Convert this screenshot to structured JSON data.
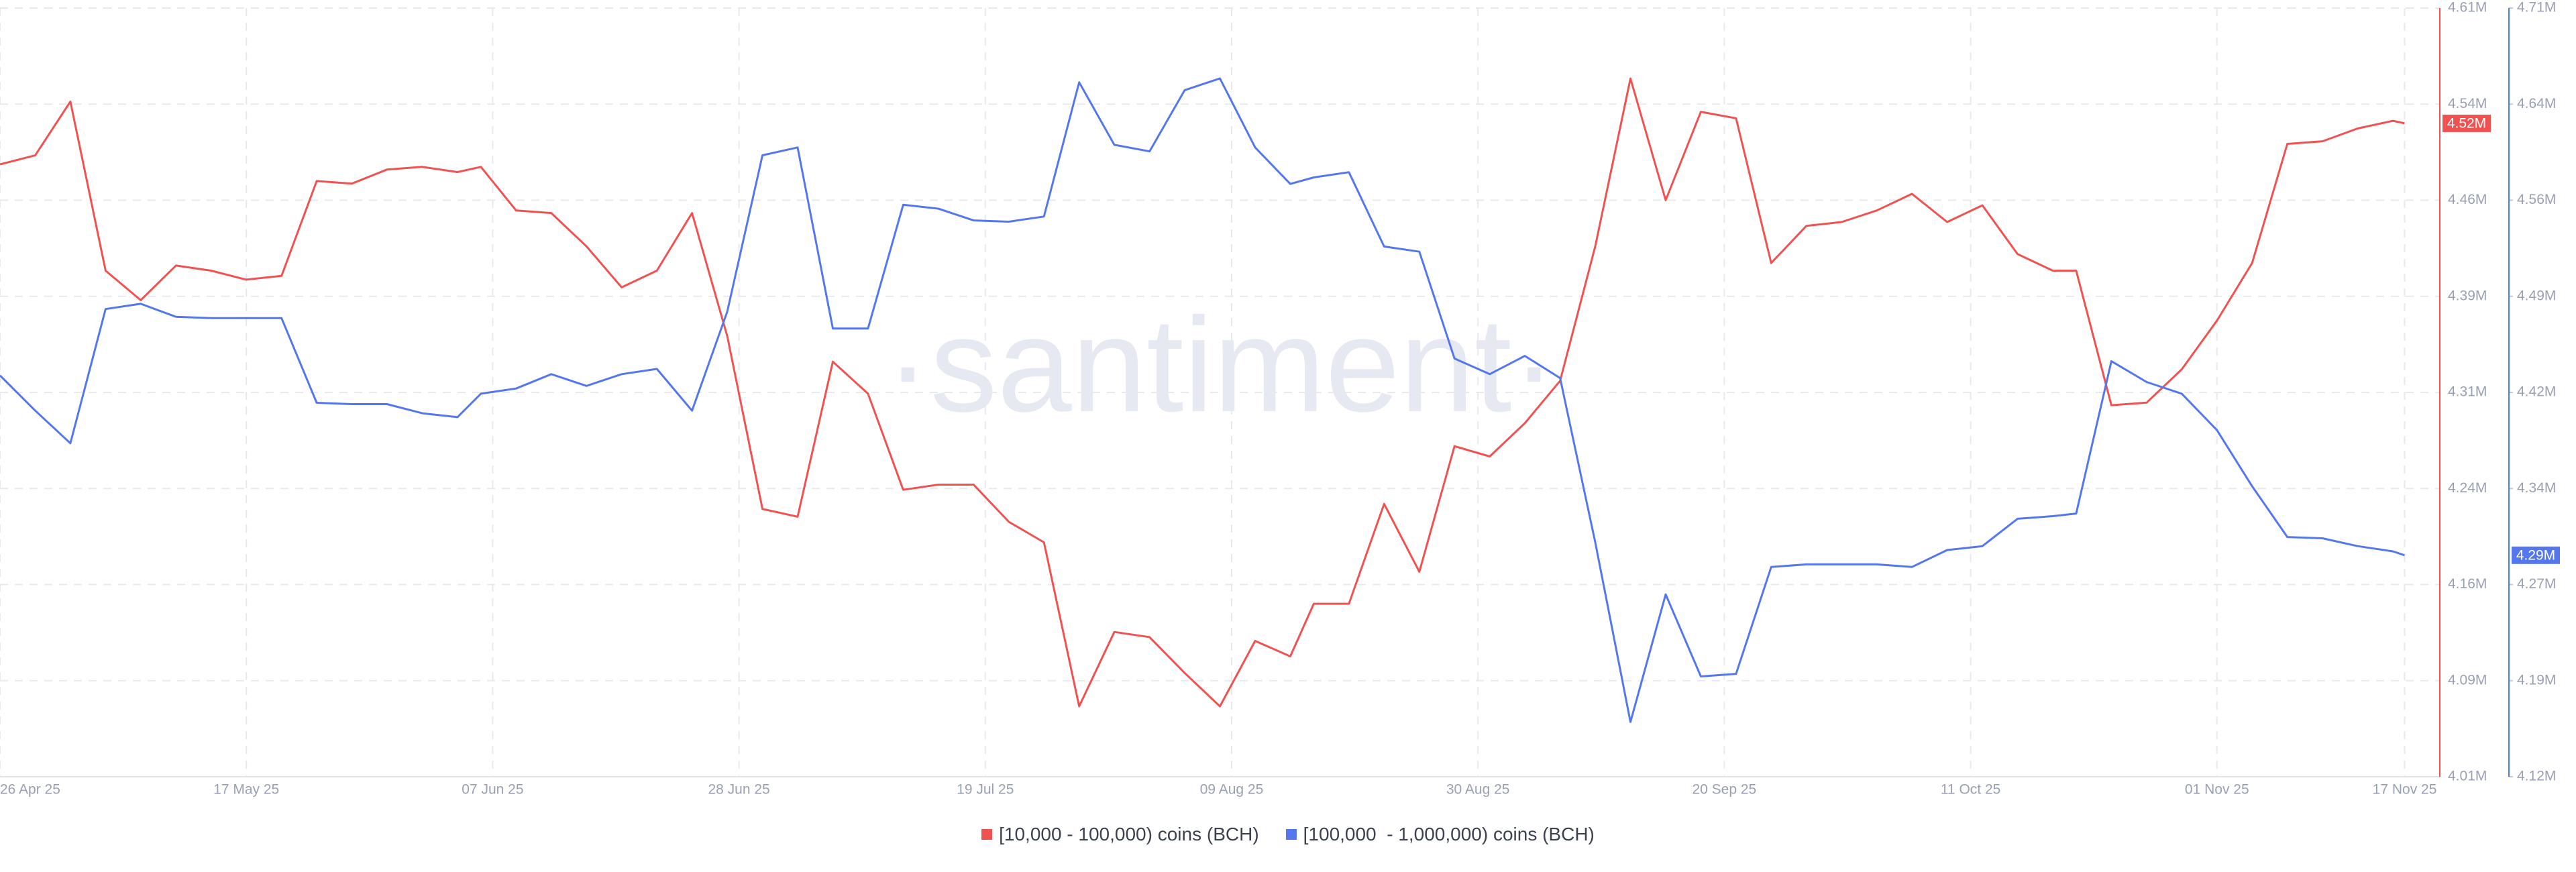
{
  "chart_data": {
    "type": "line",
    "watermark": "·santiment·",
    "x": [
      "2025-04-26",
      "2025-04-29",
      "2025-05-02",
      "2025-05-05",
      "2025-05-08",
      "2025-05-11",
      "2025-05-14",
      "2025-05-17",
      "2025-05-20",
      "2025-05-23",
      "2025-05-26",
      "2025-05-29",
      "2025-06-01",
      "2025-06-04",
      "2025-06-06",
      "2025-06-09",
      "2025-06-12",
      "2025-06-15",
      "2025-06-18",
      "2025-06-21",
      "2025-06-24",
      "2025-06-27",
      "2025-06-30",
      "2025-07-03",
      "2025-07-06",
      "2025-07-09",
      "2025-07-12",
      "2025-07-15",
      "2025-07-18",
      "2025-07-21",
      "2025-07-24",
      "2025-07-27",
      "2025-07-30",
      "2025-08-02",
      "2025-08-05",
      "2025-08-08",
      "2025-08-11",
      "2025-08-14",
      "2025-08-16",
      "2025-08-19",
      "2025-08-22",
      "2025-08-25",
      "2025-08-28",
      "2025-08-31",
      "2025-09-03",
      "2025-09-06",
      "2025-09-09",
      "2025-09-12",
      "2025-09-15",
      "2025-09-18",
      "2025-09-21",
      "2025-09-24",
      "2025-09-27",
      "2025-09-30",
      "2025-10-03",
      "2025-10-06",
      "2025-10-09",
      "2025-10-12",
      "2025-10-15",
      "2025-10-18",
      "2025-10-20",
      "2025-10-23",
      "2025-10-26",
      "2025-10-29",
      "2025-11-01",
      "2025-11-04",
      "2025-11-07",
      "2025-11-10",
      "2025-11-13",
      "2025-11-16",
      "2025-11-17"
    ],
    "xlim": [
      "2025-04-26",
      "2025-11-20"
    ],
    "xticks": [
      {
        "value": "2025-04-26",
        "label": "26 Apr 25"
      },
      {
        "value": "2025-05-17",
        "label": "17 May 25"
      },
      {
        "value": "2025-06-07",
        "label": "07 Jun 25"
      },
      {
        "value": "2025-06-28",
        "label": "28 Jun 25"
      },
      {
        "value": "2025-07-19",
        "label": "19 Jul 25"
      },
      {
        "value": "2025-08-09",
        "label": "09 Aug 25"
      },
      {
        "value": "2025-08-30",
        "label": "30 Aug 25"
      },
      {
        "value": "2025-09-20",
        "label": "20 Sep 25"
      },
      {
        "value": "2025-10-11",
        "label": "11 Oct 25"
      },
      {
        "value": "2025-11-01",
        "label": "01 Nov 25"
      },
      {
        "value": "2025-11-17",
        "label": "17 Nov 25"
      }
    ],
    "ylim": [
      4010000,
      4610000
    ],
    "yticks": [
      {
        "value": 4010000,
        "label": "4.01M"
      },
      {
        "value": 4085000,
        "label": "4.09M"
      },
      {
        "value": 4160000,
        "label": "4.16M"
      },
      {
        "value": 4235000,
        "label": "4.24M"
      },
      {
        "value": 4310000,
        "label": "4.31M"
      },
      {
        "value": 4385000,
        "label": "4.39M"
      },
      {
        "value": 4460000,
        "label": "4.46M"
      },
      {
        "value": 4535000,
        "label": "4.54M"
      },
      {
        "value": 4610000,
        "label": "4.61M"
      }
    ],
    "y2lim": [
      4120000,
      4710000
    ],
    "y2ticks": [
      {
        "value": 4120000,
        "label": "4.12M"
      },
      {
        "value": 4193750,
        "label": "4.19M"
      },
      {
        "value": 4267500,
        "label": "4.27M"
      },
      {
        "value": 4341250,
        "label": "4.34M"
      },
      {
        "value": 4415000,
        "label": "4.42M"
      },
      {
        "value": 4488750,
        "label": "4.49M"
      },
      {
        "value": 4562500,
        "label": "4.56M"
      },
      {
        "value": 4636250,
        "label": "4.64M"
      },
      {
        "value": 4710000,
        "label": "4.71M"
      }
    ],
    "grid": true,
    "legend": "bottom",
    "series": [
      {
        "name": "[10,000 - 100,000) coins (BCH)",
        "color": "#f05252",
        "last_label": "4.52M",
        "values": [
          4488000,
          4495000,
          4537000,
          4405000,
          4382000,
          4409000,
          4405000,
          4398000,
          4401000,
          4475000,
          4473000,
          4484000,
          4486000,
          4482000,
          4486000,
          4452000,
          4450000,
          4424000,
          4392000,
          4405000,
          4450000,
          4354000,
          4219000,
          4213000,
          4334000,
          4309000,
          4234000,
          4238000,
          4238000,
          4209000,
          4193000,
          4065000,
          4123000,
          4119000,
          4091000,
          4065000,
          4116000,
          4104000,
          4145000,
          4145000,
          4223000,
          4170000,
          4268000,
          4260000,
          4286000,
          4319000,
          4424000,
          4555000,
          4460000,
          4529000,
          4524000,
          4411000,
          4440000,
          4443000,
          4452000,
          4465000,
          4443000,
          4456000,
          4418000,
          4405000,
          4405000,
          4300000,
          4302000,
          4328000,
          4366000,
          4411000,
          4504000,
          4506000,
          4516000,
          4522000,
          4520000
        ]
      },
      {
        "name": "[100,000  - 1,000,000) coins (BCH)",
        "color": "#5577ee",
        "axis": "y2",
        "last_label": "4.29M",
        "values": [
          4428000,
          4401000,
          4376000,
          4479000,
          4483000,
          4473000,
          4472000,
          4472000,
          4472000,
          4407000,
          4406000,
          4406000,
          4399000,
          4396000,
          4414000,
          4418000,
          4429000,
          4420000,
          4429000,
          4433000,
          4401000,
          4477000,
          4597000,
          4603000,
          4464000,
          4464000,
          4559000,
          4556000,
          4547000,
          4546000,
          4550000,
          4653000,
          4605000,
          4600000,
          4647000,
          4656000,
          4603000,
          4575000,
          4580000,
          4584000,
          4527000,
          4523000,
          4441000,
          4429000,
          4443000,
          4426000,
          4300000,
          4162000,
          4260000,
          4197000,
          4199000,
          4281000,
          4283000,
          4283000,
          4283000,
          4281000,
          4294000,
          4297000,
          4318000,
          4320000,
          4322000,
          4439000,
          4423000,
          4414000,
          4386000,
          4343000,
          4304000,
          4303000,
          4297000,
          4293000,
          4290000
        ]
      }
    ]
  }
}
